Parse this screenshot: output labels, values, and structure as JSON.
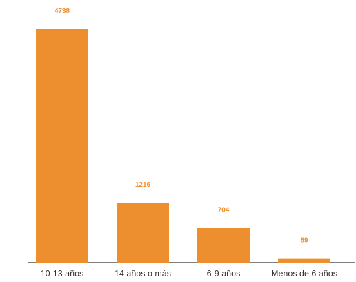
{
  "chart_data": {
    "type": "bar",
    "categories": [
      "10-13 años",
      "14 años o más",
      "6-9 años",
      "Menos de 6 años"
    ],
    "values": [
      4738,
      1216,
      704,
      89
    ],
    "title": "",
    "xlabel": "",
    "ylabel": "",
    "ylim": [
      0,
      4738
    ],
    "grid": false,
    "legend": "none",
    "data_labels": true
  },
  "colors": {
    "bar": "#ee8f2f",
    "label": "#ee8f2f",
    "axis": "#555555",
    "tick_text": "#333333"
  }
}
